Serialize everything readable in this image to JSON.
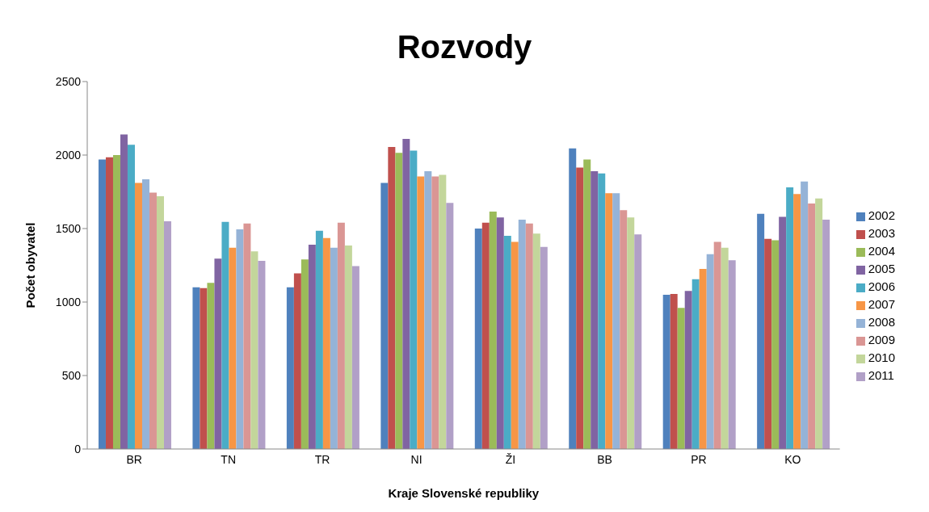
{
  "chart_data": {
    "type": "bar",
    "title": "Rozvody",
    "xlabel": "Kraje Slovenské republiky",
    "ylabel": "Počet obyvatel",
    "categories": [
      "BR",
      "TN",
      "TR",
      "NI",
      "ŽI",
      "BB",
      "PR",
      "KO"
    ],
    "ylim": [
      0,
      2500
    ],
    "yticks": [
      0,
      500,
      1000,
      1500,
      2000,
      2500
    ],
    "grid": false,
    "legend": "right",
    "series": [
      {
        "name": "2002",
        "color": "#4f81bd",
        "values": [
          1970,
          1100,
          1100,
          1810,
          1500,
          2045,
          1050,
          1600
        ]
      },
      {
        "name": "2003",
        "color": "#c0504d",
        "values": [
          1985,
          1095,
          1195,
          2055,
          1540,
          1915,
          1055,
          1430
        ]
      },
      {
        "name": "2004",
        "color": "#9bbb59",
        "values": [
          2000,
          1130,
          1290,
          2015,
          1615,
          1970,
          960,
          1420
        ]
      },
      {
        "name": "2005",
        "color": "#8064a2",
        "values": [
          2140,
          1295,
          1390,
          2110,
          1575,
          1890,
          1075,
          1580
        ]
      },
      {
        "name": "2006",
        "color": "#4bacc6",
        "values": [
          2070,
          1545,
          1485,
          2030,
          1450,
          1875,
          1155,
          1780
        ]
      },
      {
        "name": "2007",
        "color": "#f79646",
        "values": [
          1810,
          1370,
          1435,
          1855,
          1410,
          1740,
          1225,
          1735
        ]
      },
      {
        "name": "2008",
        "color": "#95b3d7",
        "values": [
          1835,
          1495,
          1370,
          1890,
          1560,
          1740,
          1325,
          1820
        ]
      },
      {
        "name": "2009",
        "color": "#da9694",
        "values": [
          1745,
          1535,
          1540,
          1855,
          1535,
          1625,
          1410,
          1670
        ]
      },
      {
        "name": "2010",
        "color": "#c3d69b",
        "values": [
          1720,
          1345,
          1385,
          1865,
          1465,
          1575,
          1370,
          1705
        ]
      },
      {
        "name": "2011",
        "color": "#b1a0c7",
        "values": [
          1550,
          1280,
          1245,
          1675,
          1375,
          1460,
          1285,
          1560
        ]
      }
    ]
  }
}
